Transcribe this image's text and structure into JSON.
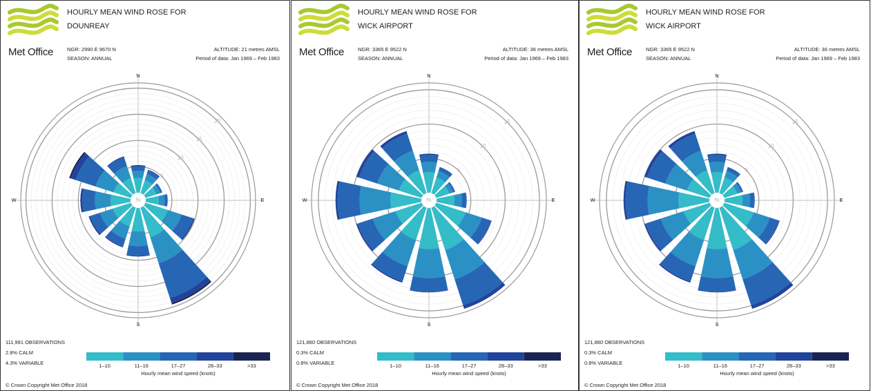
{
  "chart_data": [
    {
      "type": "rose",
      "logo": "Met Office",
      "title": [
        "HOURLY MEAN WIND ROSE FOR",
        "DOUNREAY"
      ],
      "ngr": "NGR: 2990 E   9670 N",
      "season": "SEASON: ANNUAL",
      "altitude": "ALTITUDE: 21 metres AMSL",
      "period": "Period of data: Jan 1969 – Feb 1983",
      "observations": "111,991 OBSERVATIONS",
      "calm": "2.8% CALM",
      "variable": "4.3% VARIABLE",
      "center_label": "%",
      "compass": [
        "N",
        "E",
        "S",
        "W"
      ],
      "x": [
        0,
        30,
        60,
        90,
        120,
        150,
        180,
        210,
        240,
        270,
        300,
        330
      ],
      "rlim": [
        0,
        21
      ],
      "rticks": [
        5,
        10,
        15,
        20
      ],
      "series": [
        {
          "name": "1–10",
          "color": "#34bcc8",
          "values": [
            2.8,
            2.6,
            2.2,
            2.5,
            4.5,
            6.0,
            4.5,
            3.8,
            3.6,
            3.8,
            3.5,
            3.0
          ]
        },
        {
          "name": "11–16",
          "color": "#2b91c5",
          "values": [
            1.4,
            1.2,
            0.8,
            1.1,
            2.8,
            5.2,
            2.8,
            2.5,
            2.6,
            3.0,
            3.6,
            2.4
          ]
        },
        {
          "name": "17–27",
          "color": "#2766b5",
          "values": [
            0.9,
            0.7,
            0.4,
            0.6,
            2.3,
            7.0,
            1.8,
            1.5,
            2.0,
            2.4,
            4.0,
            1.8
          ]
        },
        {
          "name": "28–33",
          "color": "#21449a",
          "values": [
            0.2,
            0.2,
            0,
            0,
            0.3,
            1.0,
            0.2,
            0.2,
            0.3,
            0.4,
            1.0,
            0.2
          ]
        },
        {
          "name": ">33",
          "color": "#1b2350",
          "values": [
            0,
            0,
            0,
            0,
            0,
            0.3,
            0,
            0,
            0,
            0,
            0.3,
            0
          ]
        }
      ],
      "x_label": "Hourly mean wind speed (knots)",
      "copyright": "© Crown Copyright Met Office 2018"
    },
    {
      "type": "rose",
      "logo": "Met Office",
      "title": [
        "HOURLY MEAN WIND ROSE FOR",
        "WICK AIRPORT"
      ],
      "ngr": "NGR: 3365 E   9522 N",
      "season": "SEASON: ANNUAL",
      "altitude": "ALTITUDE: 36 metres AMSL",
      "period": "Period of data: Jan 1969 – Feb 1983",
      "observations": "121,880 OBSERVATIONS",
      "calm": "0.3% CALM",
      "variable": "0.8% VARIABLE",
      "center_label": "%",
      "compass": [
        "N",
        "E",
        "S",
        "W"
      ],
      "x": [
        0,
        30,
        60,
        90,
        120,
        150,
        180,
        210,
        240,
        270,
        300,
        330
      ],
      "rlim": [
        0,
        16
      ],
      "rticks": [
        5,
        10,
        15
      ],
      "series": [
        {
          "name": "1–10",
          "color": "#34bcc8",
          "values": [
            3.0,
            2.4,
            2.0,
            2.6,
            4.5,
            6.5,
            6.0,
            5.0,
            4.0,
            4.5,
            3.5,
            3.5
          ]
        },
        {
          "name": "11–16",
          "color": "#2b91c5",
          "values": [
            1.5,
            1.0,
            0.6,
            1.1,
            2.5,
            4.5,
            4.2,
            4.0,
            3.5,
            4.5,
            3.3,
            3.0
          ]
        },
        {
          "name": "17–27",
          "color": "#2766b5",
          "values": [
            1.0,
            0.6,
            0.3,
            0.7,
            1.4,
            4.0,
            2.0,
            2.3,
            2.3,
            3.2,
            2.8,
            2.6
          ]
        },
        {
          "name": "28–33",
          "color": "#21449a",
          "values": [
            0.2,
            0,
            0,
            0,
            0.1,
            0.5,
            0.1,
            0.2,
            0.2,
            0.3,
            0.4,
            0.4
          ]
        },
        {
          "name": ">33",
          "color": "#1b2350",
          "values": [
            0,
            0,
            0,
            0,
            0,
            0,
            0,
            0,
            0,
            0,
            0,
            0
          ]
        }
      ],
      "x_label": "Hourly mean wind speed (knots)",
      "copyright": "© Crown Copyright Met Office 2018"
    },
    {
      "type": "rose",
      "logo": "Met Office",
      "title": [
        "HOURLY MEAN WIND ROSE FOR",
        "WICK AIRPORT"
      ],
      "ngr": "NGR: 3365 E   9522 N",
      "season": "SEASON: ANNUAL",
      "altitude": "ALTITUDE: 36 metres AMSL",
      "period": "Period of data: Jan 1969 – Feb 1983",
      "observations": "121,880 OBSERVATIONS",
      "calm": "0.3% CALM",
      "variable": "0.8% VARIABLE",
      "center_label": "%",
      "compass": [
        "N",
        "E",
        "S",
        "W"
      ],
      "x": [
        0,
        30,
        60,
        90,
        120,
        150,
        180,
        210,
        240,
        270,
        300,
        330
      ],
      "rlim": [
        0,
        16
      ],
      "rticks": [
        5,
        10,
        15
      ],
      "series": [
        {
          "name": "1–10",
          "color": "#34bcc8",
          "values": [
            3.0,
            2.4,
            2.0,
            2.6,
            4.5,
            6.5,
            6.0,
            5.0,
            4.0,
            4.5,
            3.5,
            3.5
          ]
        },
        {
          "name": "11–16",
          "color": "#2b91c5",
          "values": [
            1.5,
            1.0,
            0.6,
            1.1,
            2.5,
            4.5,
            4.2,
            4.0,
            3.5,
            4.5,
            3.3,
            3.0
          ]
        },
        {
          "name": "17–27",
          "color": "#2766b5",
          "values": [
            1.0,
            0.6,
            0.3,
            0.7,
            1.4,
            4.0,
            2.0,
            2.3,
            2.3,
            3.2,
            2.8,
            2.6
          ]
        },
        {
          "name": "28–33",
          "color": "#21449a",
          "values": [
            0.2,
            0,
            0,
            0,
            0.1,
            0.5,
            0.1,
            0.2,
            0.2,
            0.3,
            0.4,
            0.4
          ]
        },
        {
          "name": ">33",
          "color": "#1b2350",
          "values": [
            0,
            0,
            0,
            0,
            0,
            0,
            0,
            0,
            0,
            0,
            0,
            0
          ]
        }
      ],
      "x_label": "Hourly mean wind speed (knots)",
      "copyright": "© Crown Copyright Met Office 2018"
    }
  ]
}
